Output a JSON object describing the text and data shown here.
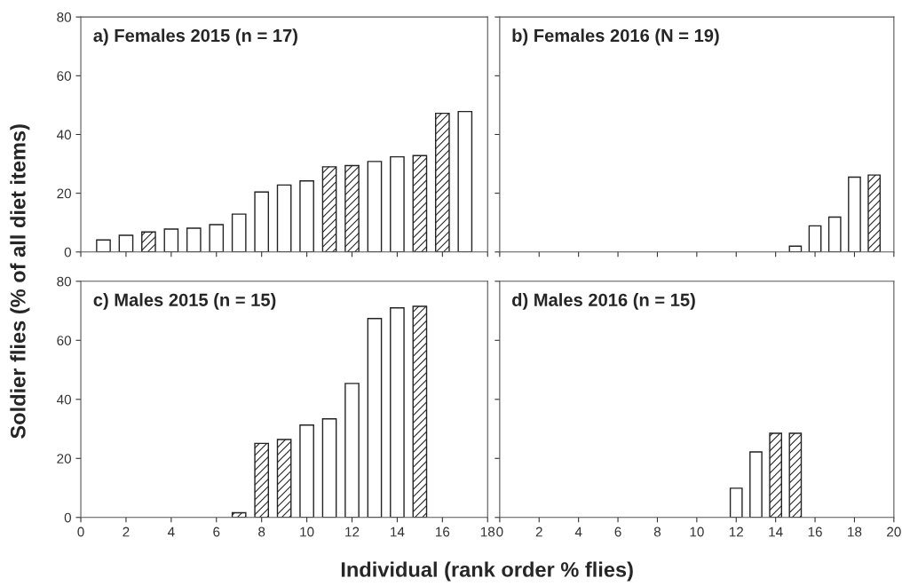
{
  "chart_data": [
    {
      "type": "bar",
      "title": "a) Females 2015 (n = 17)",
      "ylabel": "Soldier flies (% of all diet items)",
      "xlim": [
        0,
        18
      ],
      "xticks": [
        0,
        2,
        4,
        6,
        8,
        10,
        12,
        14,
        16,
        18
      ],
      "ylim": [
        0,
        80
      ],
      "yticks": [
        0,
        20,
        40,
        60,
        80
      ],
      "tick_labels": "y",
      "grid": false,
      "series": [
        {
          "color": "#ffffff",
          "x": [
            1,
            2,
            4,
            5,
            6,
            7,
            8,
            9,
            10,
            13,
            14,
            17
          ],
          "values": [
            4.1,
            5.7,
            7.8,
            8.1,
            9.3,
            12.9,
            20.4,
            22.8,
            24.2,
            30.8,
            32.4,
            47.8
          ]
        },
        {
          "color": "#222222",
          "x": [
            3,
            11,
            12,
            15,
            16
          ],
          "values": [
            6.8,
            29.0,
            29.4,
            32.8,
            47.2
          ]
        }
      ]
    },
    {
      "type": "bar",
      "title": "b) Females 2016 (N = 19)",
      "xlim": [
        0,
        20
      ],
      "xticks": [
        0,
        2,
        4,
        6,
        8,
        10,
        12,
        14,
        16,
        18,
        20
      ],
      "ylim": [
        0,
        80
      ],
      "yticks": [
        0,
        20,
        40,
        60,
        80
      ],
      "tick_labels": false,
      "grid": false,
      "series": [
        {
          "color": "#ffffff",
          "x": [
            15,
            16,
            17,
            18
          ],
          "values": [
            2.0,
            8.9,
            11.9,
            25.5
          ]
        },
        {
          "color": "#222222",
          "x": [
            19
          ],
          "values": [
            26.2
          ]
        }
      ]
    },
    {
      "type": "bar",
      "title": "c) Males 2015 (n = 15)",
      "xlabel": "Individual (rank order % flies)",
      "xlim": [
        0,
        18
      ],
      "xticks": [
        0,
        2,
        4,
        6,
        8,
        10,
        12,
        14,
        16,
        18
      ],
      "ylim": [
        0,
        80
      ],
      "yticks": [
        0,
        20,
        40,
        60,
        80
      ],
      "grid": false,
      "series": [
        {
          "color": "#ffffff",
          "x": [
            10,
            11,
            12,
            13,
            14
          ],
          "values": [
            31.3,
            33.4,
            45.4,
            67.4,
            71.0
          ]
        },
        {
          "color": "#222222",
          "x": [
            7,
            8,
            9,
            15
          ],
          "values": [
            1.6,
            25.1,
            26.4,
            71.5
          ]
        }
      ]
    },
    {
      "type": "bar",
      "title": "d) Males 2016 (n = 15)",
      "xlim": [
        0,
        20
      ],
      "xticks": [
        0,
        2,
        4,
        6,
        8,
        10,
        12,
        14,
        16,
        18,
        20
      ],
      "ylim": [
        0,
        80
      ],
      "yticks": [
        0,
        20,
        40,
        60,
        80
      ],
      "tick_labels": "x",
      "grid": false,
      "series": [
        {
          "color": "#ffffff",
          "x": [
            12,
            13
          ],
          "values": [
            9.9,
            22.2
          ]
        },
        {
          "color": "#222222",
          "x": [
            14,
            15
          ],
          "values": [
            28.5,
            28.5
          ]
        }
      ]
    }
  ]
}
